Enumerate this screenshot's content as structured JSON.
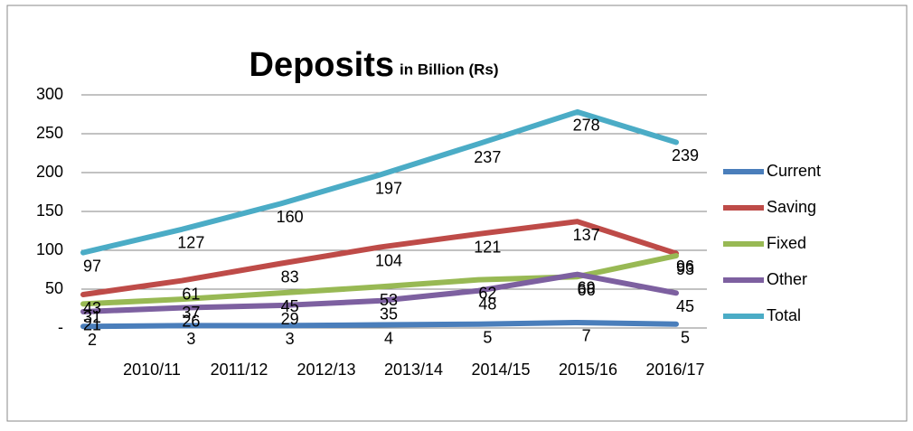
{
  "chart_data": {
    "type": "line",
    "title": "Deposits",
    "subtitle": "in Billion (Rs)",
    "categories": [
      "2010/11",
      "2011/12",
      "2012/13",
      "2013/14",
      "2014/15",
      "2015/16",
      "2016/17"
    ],
    "series": [
      {
        "name": "Current",
        "color": "#4a7ebb",
        "values": [
          2,
          3,
          3,
          4,
          5,
          7,
          5
        ]
      },
      {
        "name": "Saving",
        "color": "#be4b48",
        "values": [
          43,
          61,
          83,
          104,
          121,
          137,
          96
        ]
      },
      {
        "name": "Fixed",
        "color": "#98b954",
        "values": [
          31,
          37,
          45,
          53,
          62,
          66,
          93
        ]
      },
      {
        "name": "Other",
        "color": "#7d60a0",
        "values": [
          21,
          26,
          29,
          35,
          48,
          69,
          45
        ]
      },
      {
        "name": "Total",
        "color": "#4bacc6",
        "values": [
          97,
          127,
          160,
          197,
          237,
          278,
          239
        ]
      }
    ],
    "ylim": [
      0,
      300
    ],
    "yticks": [
      {
        "value": 0,
        "label": "-"
      },
      50,
      100,
      150,
      200,
      250,
      300
    ],
    "grid": true,
    "legend": "right"
  }
}
